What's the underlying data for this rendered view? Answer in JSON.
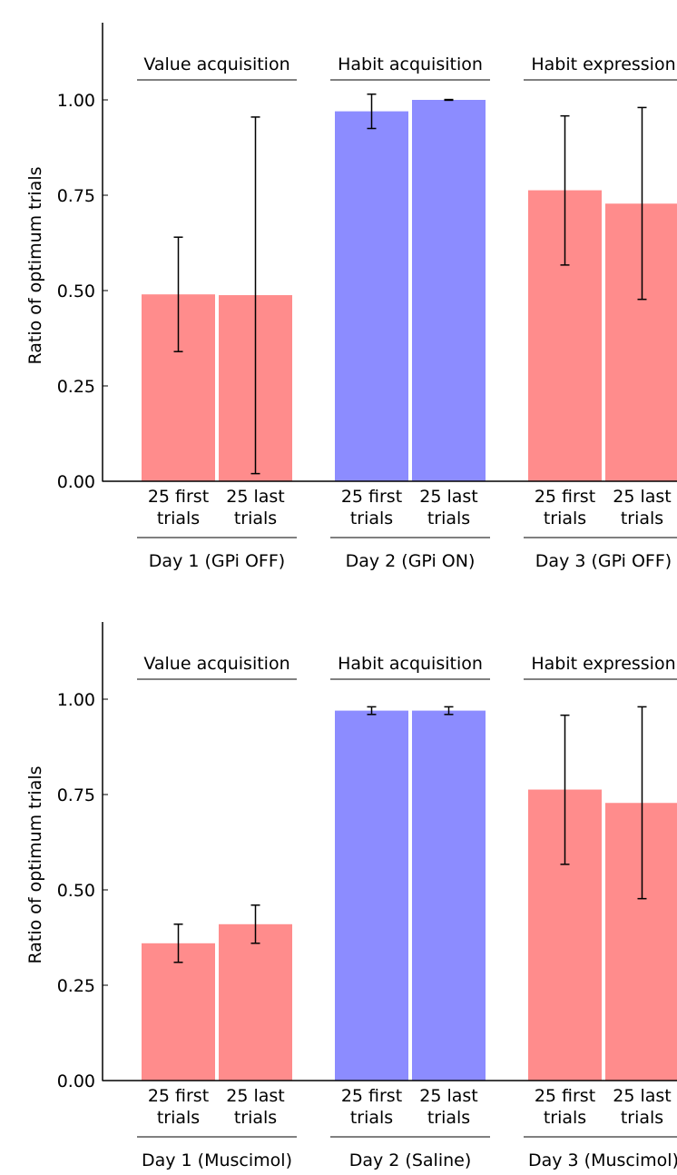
{
  "colors": {
    "red": "#ff8c8c",
    "blue": "#8c8cff",
    "axis": "#000000"
  },
  "chart_data": [
    {
      "type": "bar",
      "ylabel": "Ratio of optimum trials",
      "ylim": [
        0,
        1.2
      ],
      "yticks": [
        "1.00",
        "0.75",
        "0.50",
        "0.25",
        "0.00"
      ],
      "groups": [
        {
          "phase": "Value acquisition",
          "day": "Day 1 (GPi OFF)",
          "color": "red",
          "bars": [
            {
              "label_top": "25 first",
              "label_bottom": "trials",
              "value": 0.49,
              "err_low": 0.34,
              "err_high": 0.64
            },
            {
              "label_top": "25 last",
              "label_bottom": "trials",
              "value": 0.488,
              "err_low": 0.02,
              "err_high": 0.955
            }
          ]
        },
        {
          "phase": "Habit acquisition",
          "day": "Day 2 (GPi ON)",
          "color": "blue",
          "bars": [
            {
              "label_top": "25 first",
              "label_bottom": "trials",
              "value": 0.97,
              "err_low": 0.925,
              "err_high": 1.015
            },
            {
              "label_top": "25 last",
              "label_bottom": "trials",
              "value": 1.0,
              "err_low": 0.999,
              "err_high": 1.001
            }
          ]
        },
        {
          "phase": "Habit expression",
          "day": "Day 3 (GPi OFF)",
          "color": "red",
          "bars": [
            {
              "label_top": "25 first",
              "label_bottom": "trials",
              "value": 0.763,
              "err_low": 0.567,
              "err_high": 0.958
            },
            {
              "label_top": "25 last",
              "label_bottom": "trials",
              "value": 0.728,
              "err_low": 0.477,
              "err_high": 0.98
            }
          ]
        }
      ]
    },
    {
      "type": "bar",
      "ylabel": "Ratio of optimum trials",
      "ylim": [
        0,
        1.2
      ],
      "yticks": [
        "1.00",
        "0.75",
        "0.50",
        "0.25",
        "0.00"
      ],
      "groups": [
        {
          "phase": "Value acquisition",
          "day": "Day 1 (Muscimol)",
          "color": "red",
          "bars": [
            {
              "label_top": "25 first",
              "label_bottom": "trials",
              "value": 0.36,
              "err_low": 0.31,
              "err_high": 0.41
            },
            {
              "label_top": "25 last",
              "label_bottom": "trials",
              "value": 0.41,
              "err_low": 0.36,
              "err_high": 0.46
            }
          ]
        },
        {
          "phase": "Habit acquisition",
          "day": "Day 2 (Saline)",
          "color": "blue",
          "bars": [
            {
              "label_top": "25 first",
              "label_bottom": "trials",
              "value": 0.97,
              "err_low": 0.96,
              "err_high": 0.98
            },
            {
              "label_top": "25 last",
              "label_bottom": "trials",
              "value": 0.97,
              "err_low": 0.96,
              "err_high": 0.98
            }
          ]
        },
        {
          "phase": "Habit expression",
          "day": "Day 3 (Muscimol)",
          "color": "red",
          "bars": [
            {
              "label_top": "25 first",
              "label_bottom": "trials",
              "value": 0.763,
              "err_low": 0.567,
              "err_high": 0.958
            },
            {
              "label_top": "25 last",
              "label_bottom": "trials",
              "value": 0.728,
              "err_low": 0.477,
              "err_high": 0.98
            }
          ]
        }
      ]
    }
  ]
}
